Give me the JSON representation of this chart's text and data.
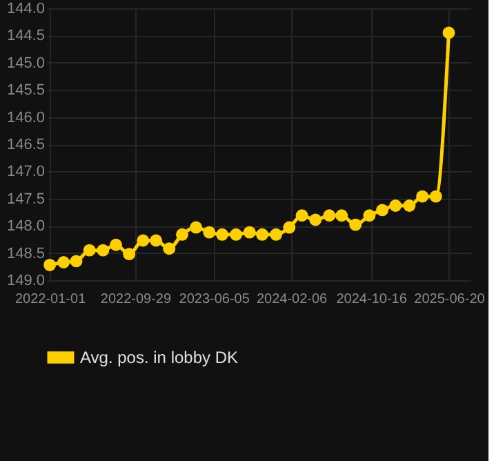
{
  "chart_data": {
    "type": "line",
    "x": [
      "2022-01-01",
      "2022-02-14",
      "2022-03-26",
      "2022-05-07",
      "2022-06-19",
      "2022-07-30",
      "2022-09-10",
      "2022-10-24",
      "2022-12-04",
      "2023-01-15",
      "2023-02-25",
      "2023-04-10",
      "2023-05-22",
      "2023-07-02",
      "2023-08-15",
      "2023-09-27",
      "2023-11-06",
      "2023-12-20",
      "2024-01-31",
      "2024-03-11",
      "2024-04-23",
      "2024-06-06",
      "2024-07-15",
      "2024-08-28",
      "2024-10-11",
      "2024-11-21",
      "2025-01-02",
      "2025-02-15",
      "2025-03-28",
      "2025-05-10",
      "2025-06-20"
    ],
    "series": [
      {
        "name": "Avg. pos. in lobby DK",
        "color": "#ffd000",
        "values": [
          148.72,
          148.67,
          148.65,
          148.45,
          148.45,
          148.35,
          148.52,
          148.27,
          148.27,
          148.42,
          148.16,
          148.03,
          148.12,
          148.16,
          148.16,
          148.12,
          148.16,
          148.16,
          148.03,
          147.81,
          147.89,
          147.81,
          147.81,
          147.98,
          147.81,
          147.71,
          147.63,
          147.63,
          147.46,
          147.46,
          144.45
        ]
      }
    ],
    "xlim": [
      "2021-12-23",
      "2025-08-28"
    ],
    "xticks": [
      "2022-01-01",
      "2022-09-29",
      "2023-06-05",
      "2024-02-06",
      "2024-10-16",
      "2025-06-20"
    ],
    "ylim": [
      149.0,
      144.0
    ],
    "yticks": [
      {
        "value": 144,
        "label": "144.0"
      },
      {
        "value": 144.5,
        "label": "144.5"
      },
      {
        "value": 145,
        "label": "145.0"
      },
      {
        "value": 145.5,
        "label": "145.5"
      },
      {
        "value": 146,
        "label": "146.0"
      },
      {
        "value": 146.5,
        "label": "146.5"
      },
      {
        "value": 147,
        "label": "147.0"
      },
      {
        "value": 147.5,
        "label": "147.5"
      },
      {
        "value": 148,
        "label": "148.0"
      },
      {
        "value": 148.5,
        "label": "148.5"
      },
      {
        "value": 149,
        "label": "149.0"
      }
    ],
    "grid": true,
    "legend": "bottom",
    "marker": "circle",
    "line_style": "solid"
  }
}
